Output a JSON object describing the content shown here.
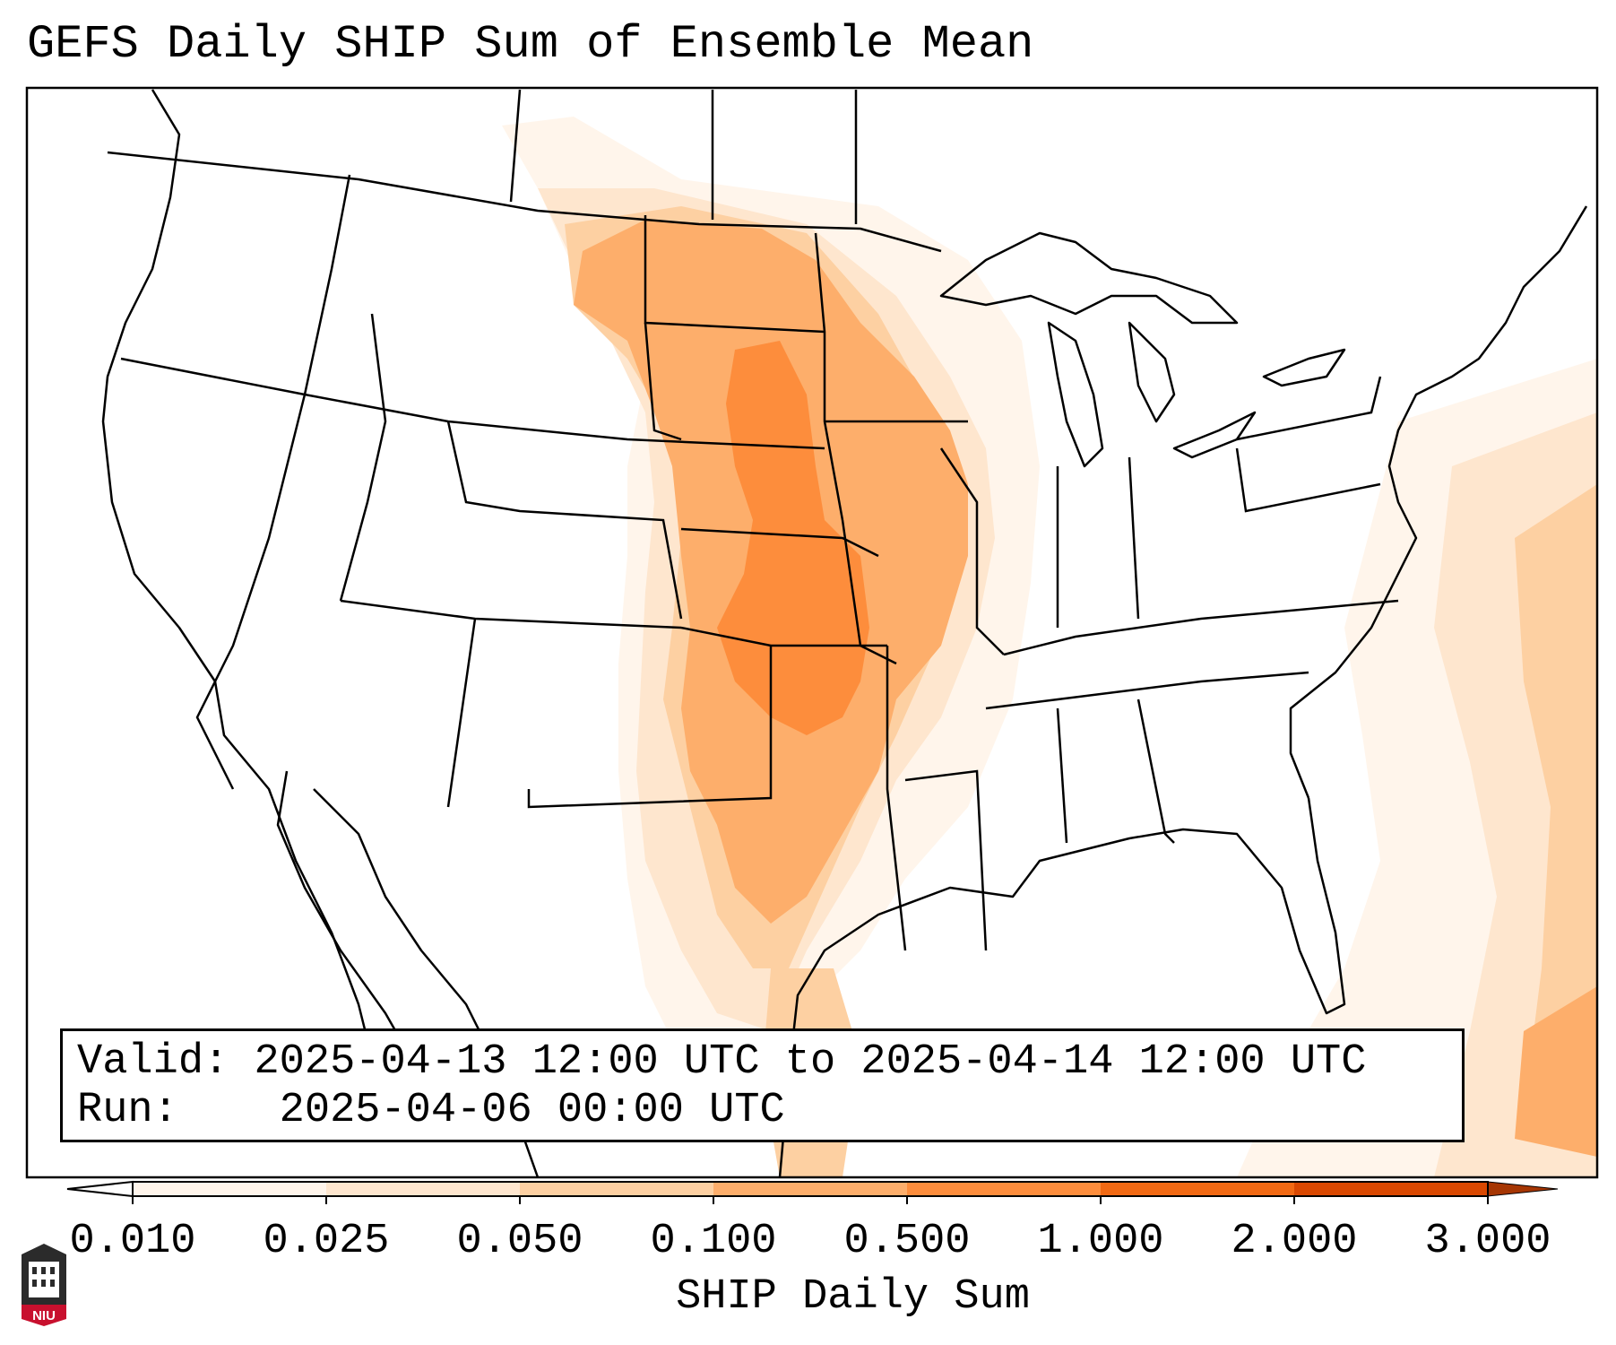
{
  "title": "GEFS Daily SHIP Sum of Ensemble Mean",
  "info": {
    "valid_label": "Valid:",
    "valid_value": "2025-04-13 12:00 UTC to 2025-04-14 12:00 UTC",
    "run_label": "Run:",
    "run_value": "2025-04-06 00:00 UTC"
  },
  "colorbar": {
    "label": "SHIP Daily Sum",
    "ticks": [
      "0.010",
      "0.025",
      "0.050",
      "0.100",
      "0.500",
      "1.000",
      "2.000",
      "3.000"
    ],
    "colors": [
      "#fff5eb",
      "#fee6ce",
      "#fdd0a2",
      "#fdae6b",
      "#fd8d3c",
      "#f16913",
      "#d94801",
      "#a63603"
    ],
    "extend": "both"
  },
  "logo": {
    "text": "NIU",
    "color": "#c8102e"
  },
  "map": {
    "region": "Contiguous United States",
    "field": "SHIP Daily Sum",
    "shaded_areas": [
      {
        "area": "Northern/Central/Southern Plains (SD, NE, KS, OK)",
        "level": "0.500"
      },
      {
        "area": "Northern Plains, Iowa, Missouri, Arkansas, Texas",
        "level": "0.100"
      },
      {
        "area": "Texas/Mexico, Mississippi Valley edges",
        "level": "0.050"
      },
      {
        "area": "Western Atlantic Ocean east of the Carolinas",
        "level": "0.050"
      },
      {
        "area": "Southwestern Atlantic near Cuba / Bahamas",
        "level": "0.100"
      }
    ]
  }
}
